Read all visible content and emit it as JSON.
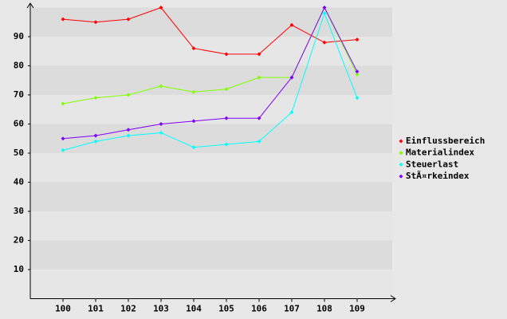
{
  "chart_data": {
    "type": "line",
    "categories": [
      "100",
      "101",
      "102",
      "103",
      "104",
      "105",
      "106",
      "107",
      "108",
      "109"
    ],
    "series": [
      {
        "name": "Einflussbereich",
        "color": "#ff0000",
        "values": [
          96,
          95,
          96,
          100,
          86,
          84,
          84,
          94,
          88,
          89
        ]
      },
      {
        "name": "Materialindex",
        "color": "#80ff00",
        "values": [
          67,
          69,
          70,
          73,
          71,
          72,
          76,
          76,
          100,
          77
        ]
      },
      {
        "name": "Steuerlast",
        "color": "#00ffff",
        "values": [
          51,
          54,
          56,
          57,
          52,
          53,
          54,
          64,
          98,
          69
        ]
      },
      {
        "name": "StÃ¤rkeindex",
        "color": "#8000ff",
        "values": [
          55,
          56,
          58,
          60,
          61,
          62,
          62,
          76,
          100,
          78
        ]
      }
    ],
    "ylim": [
      0,
      100
    ],
    "yticks": [
      10,
      20,
      30,
      40,
      50,
      60,
      70,
      80,
      90
    ],
    "stripes": true,
    "legend": "right"
  }
}
